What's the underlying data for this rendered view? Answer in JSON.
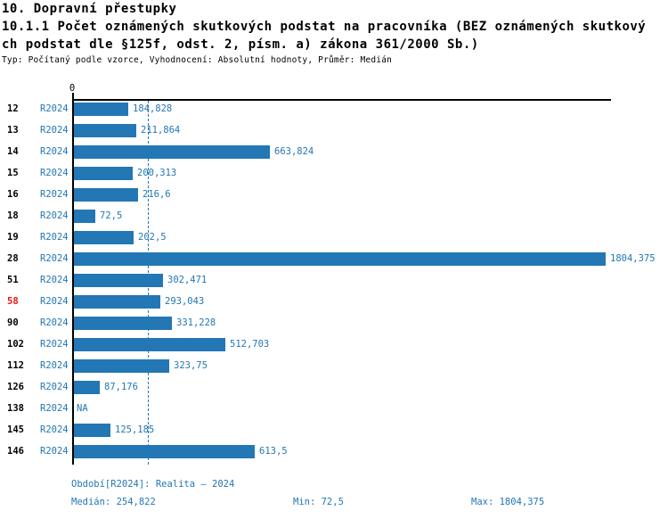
{
  "header": {
    "title": "10. Dopravní přestupky",
    "subtitle_line1": "10.1.1 Počet oznámených skutkových podstat na pracovníka (BEZ oznámených skutkový",
    "subtitle_line2": "ch podstat dle §125f, odst. 2, písm. a) zákona 361/2000 Sb.)",
    "meta": "Typ: Počítaný podle vzorce, Vyhodnocení: Absolutní hodnoty, Průměr: Medián"
  },
  "chart_data": {
    "type": "bar",
    "orientation": "horizontal",
    "title": "10.1.1 Počet oznámených skutkových podstat na pracovníka (BEZ oznámených skutkových podstat dle §125f, odst. 2, písm. a) zákona 361/2000 Sb.)",
    "categories": [
      "12",
      "13",
      "14",
      "15",
      "16",
      "18",
      "19",
      "28",
      "51",
      "58",
      "90",
      "102",
      "112",
      "126",
      "138",
      "145",
      "146"
    ],
    "series": [
      {
        "name": "R2024",
        "values": [
          184.828,
          211.864,
          663.824,
          200.313,
          216.6,
          72.5,
          202.5,
          1804.375,
          302.471,
          293.043,
          331.228,
          512.703,
          323.75,
          87.176,
          null,
          125.185,
          613.5
        ]
      }
    ],
    "value_labels": [
      "184,828",
      "211,864",
      "663,824",
      "200,313",
      "216,6",
      "72,5",
      "202,5",
      "1804,375",
      "302,471",
      "293,043",
      "331,228",
      "512,703",
      "323,75",
      "87,176",
      "NA",
      "125,185",
      "613,5"
    ],
    "x_axis": {
      "zero_label": "0",
      "min": 0,
      "max": 1804.375
    },
    "median": 254.822,
    "median_line": true,
    "highlighted_category": "58",
    "grid": false,
    "legend_position": "none"
  },
  "footer": {
    "period_info": "Období[R2024]: Realita – 2024",
    "median": "Medián: 254,822",
    "min": "Min: 72,5",
    "max": "Max: 1804,375"
  },
  "colors": {
    "bar": "#2277b4",
    "blue_text": "#2277b4",
    "highlight_red": "#ee1111",
    "axis_black": "#000000"
  }
}
